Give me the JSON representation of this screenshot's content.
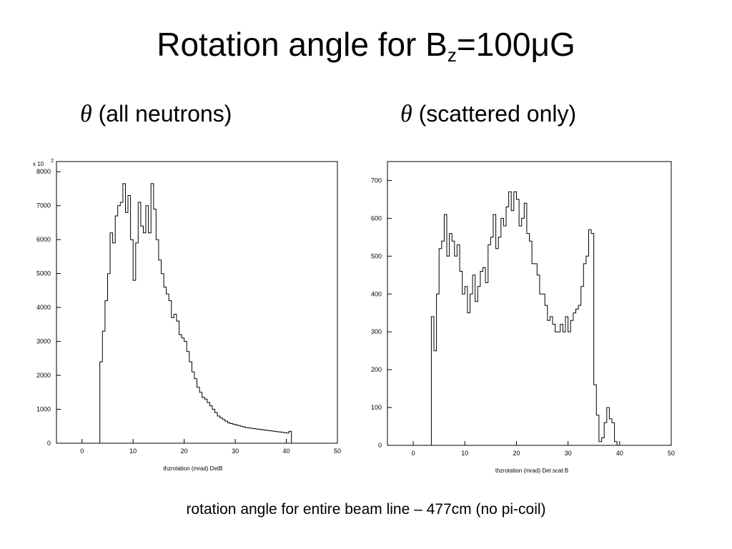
{
  "slide": {
    "title_main": "Rotation angle for B",
    "title_sub": "z",
    "title_rest": "=100",
    "title_mu": "μ",
    "title_end": "G",
    "panel_left_symbol": "θ",
    "panel_left_text": "(all neutrons)",
    "panel_right_symbol": "θ",
    "panel_right_text": "(scattered only)",
    "caption": "rotation angle for entire beam line – 477cm (no pi-coil)"
  },
  "chart_data": [
    {
      "type": "histogram",
      "title": "",
      "xlabel": "thzrotation (mrad) DetB",
      "ylabel": "",
      "y_multiplier_label": "x 10",
      "y_multiplier_exp": "2",
      "xlim": [
        -5,
        50
      ],
      "ylim": [
        0,
        8300
      ],
      "x_ticks": [
        0,
        10,
        20,
        30,
        40,
        50
      ],
      "y_ticks": [
        0,
        1000,
        2000,
        3000,
        4000,
        5000,
        6000,
        7000,
        8000
      ],
      "bin_width": 0.5,
      "bin_start": 3,
      "values": [
        0,
        2400,
        3300,
        4200,
        5000,
        6200,
        5900,
        6700,
        7000,
        7100,
        7650,
        6800,
        7300,
        6000,
        4800,
        5900,
        7100,
        6400,
        6200,
        7000,
        6200,
        7650,
        6900,
        6000,
        5400,
        5000,
        4600,
        4400,
        4200,
        3700,
        3800,
        3600,
        3200,
        3100,
        3000,
        2700,
        2400,
        2100,
        1900,
        1650,
        1500,
        1350,
        1300,
        1200,
        1100,
        1000,
        900,
        800,
        750,
        700,
        650,
        600,
        580,
        560,
        540,
        520,
        500,
        480,
        460,
        450,
        440,
        430,
        420,
        410,
        400,
        390,
        380,
        370,
        360,
        350,
        340,
        330,
        320,
        310,
        300,
        350,
        0
      ],
      "grid": false,
      "color": "#000000"
    },
    {
      "type": "histogram",
      "title": "",
      "xlabel": "thzrotation (mrad) Det scat B",
      "ylabel": "",
      "xlim": [
        -5,
        50
      ],
      "ylim": [
        0,
        750
      ],
      "x_ticks": [
        0,
        10,
        20,
        30,
        40,
        50
      ],
      "y_ticks": [
        0,
        100,
        200,
        300,
        400,
        500,
        600,
        700
      ],
      "bin_width": 0.5,
      "bin_start": 3,
      "values": [
        0,
        340,
        250,
        400,
        520,
        540,
        610,
        500,
        560,
        540,
        500,
        530,
        460,
        400,
        420,
        350,
        400,
        450,
        380,
        420,
        460,
        470,
        430,
        530,
        550,
        610,
        520,
        550,
        600,
        580,
        630,
        670,
        620,
        670,
        650,
        580,
        600,
        640,
        560,
        540,
        480,
        480,
        450,
        400,
        400,
        370,
        330,
        340,
        320,
        300,
        300,
        320,
        300,
        340,
        300,
        330,
        350,
        360,
        370,
        420,
        480,
        500,
        570,
        560,
        160,
        80,
        10,
        20,
        60,
        100,
        70,
        60,
        10,
        0,
        0,
        0
      ]
    }
  ]
}
